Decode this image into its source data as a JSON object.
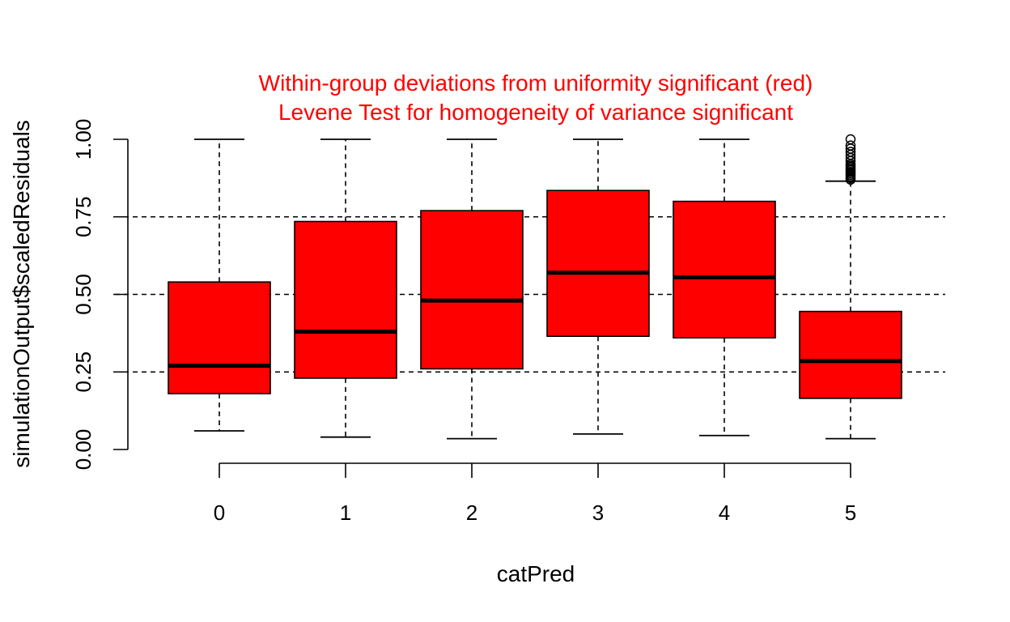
{
  "chart_data": {
    "type": "boxplot",
    "title_lines": [
      "Within-group deviations from uniformity significant (red)",
      "Levene Test for homogeneity of variance significant"
    ],
    "xlabel": "catPred",
    "ylabel": "simulationOutput$scaledResiduals",
    "categories": [
      "0",
      "1",
      "2",
      "3",
      "4",
      "5"
    ],
    "y_ticks": [
      "0.00",
      "0.25",
      "0.50",
      "0.75",
      "1.00"
    ],
    "ylim": [
      0,
      1
    ],
    "reference_lines": [
      0.25,
      0.5,
      0.75
    ],
    "boxes": [
      {
        "category": "0",
        "whisker_low": 0.06,
        "q1": 0.18,
        "median": 0.27,
        "q3": 0.54,
        "whisker_high": 1.0,
        "outliers": []
      },
      {
        "category": "1",
        "whisker_low": 0.04,
        "q1": 0.23,
        "median": 0.38,
        "q3": 0.735,
        "whisker_high": 1.0,
        "outliers": []
      },
      {
        "category": "2",
        "whisker_low": 0.035,
        "q1": 0.26,
        "median": 0.48,
        "q3": 0.77,
        "whisker_high": 1.0,
        "outliers": []
      },
      {
        "category": "3",
        "whisker_low": 0.05,
        "q1": 0.365,
        "median": 0.57,
        "q3": 0.835,
        "whisker_high": 1.0,
        "outliers": []
      },
      {
        "category": "4",
        "whisker_low": 0.045,
        "q1": 0.36,
        "median": 0.555,
        "q3": 0.8,
        "whisker_high": 1.0,
        "outliers": []
      },
      {
        "category": "5",
        "whisker_low": 0.035,
        "q1": 0.165,
        "median": 0.285,
        "q3": 0.445,
        "whisker_high": 0.865,
        "outliers": [
          0.87,
          0.875,
          0.88,
          0.885,
          0.89,
          0.895,
          0.9,
          0.905,
          0.91,
          0.915,
          0.92,
          0.93,
          0.94,
          0.95,
          0.96,
          0.97,
          0.98,
          1.0
        ]
      }
    ],
    "colors": {
      "box_fill": "#ff0000",
      "title": "#ff0000",
      "ink": "#000000"
    }
  }
}
